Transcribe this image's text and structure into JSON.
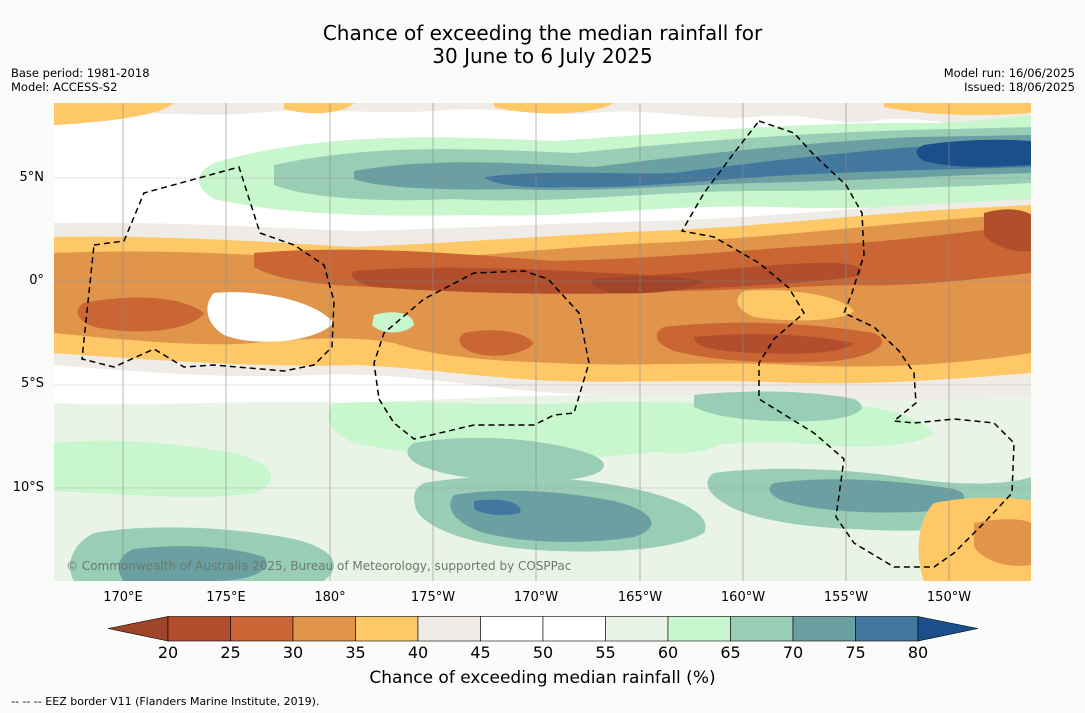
{
  "title": {
    "line1": "Chance of exceeding the median rainfall for",
    "line2": "30 June to 6 July 2025"
  },
  "meta_left": {
    "base_period": "Base period: 1981-2018",
    "model": "Model: ACCESS-S2"
  },
  "meta_right": {
    "model_run": "Model run: 16/06/2025",
    "issued": "Issued: 18/06/2025"
  },
  "lat_labels": [
    "5°N",
    "0°",
    "5°S",
    "10°S"
  ],
  "lon_labels": [
    "170°E",
    "175°E",
    "180°",
    "175°W",
    "170°W",
    "165°W",
    "160°W",
    "155°W",
    "150°W"
  ],
  "colorbar": {
    "ticks": [
      "20",
      "25",
      "30",
      "35",
      "40",
      "45",
      "50",
      "55",
      "60",
      "65",
      "70",
      "75",
      "80"
    ],
    "colors": [
      "#a0452a",
      "#b34e2d",
      "#c96634",
      "#e0954b",
      "#fdc865",
      "#efebe6",
      "#ffffff",
      "#ffffff",
      "#e9f4e7",
      "#c8f6cd",
      "#99cdb6",
      "#6ba0a3",
      "#42789e",
      "#1a4f8c"
    ],
    "title": "Chance of exceeding median rainfall (%)"
  },
  "copyright": "© Commonwealth of Australia 2025, Bureau of Meteorology, supported by COSPPac",
  "footer": "-- -- -- EEZ border V11 (Flanders Marine Institute, 2019)."
}
